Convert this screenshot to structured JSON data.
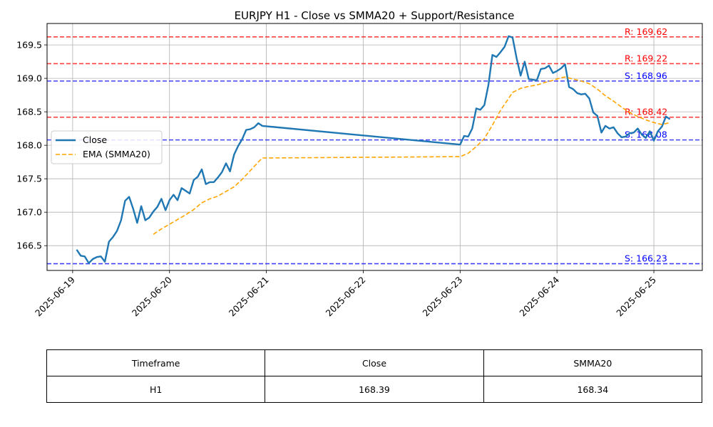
{
  "chart_data": {
    "type": "line",
    "title": "EURJPY H1 - Close vs SMMA20 + Support/Resistance",
    "xlabel": "",
    "ylabel": "",
    "x_range": [
      "2025-06-18T17:40",
      "2025-06-25T12:00"
    ],
    "ylim": [
      166.13,
      169.82
    ],
    "x_ticks": [
      "2025-06-19",
      "2025-06-20",
      "2025-06-21",
      "2025-06-22",
      "2025-06-23",
      "2025-06-24",
      "2025-06-25"
    ],
    "y_ticks": [
      166.5,
      167.0,
      167.5,
      168.0,
      168.5,
      169.0,
      169.5
    ],
    "grid": true,
    "legend_position": "center-left",
    "series": [
      {
        "name": "Close",
        "color": "#1f77b4",
        "style": "solid",
        "points": [
          [
            "2025-06-19T01:00",
            166.44
          ],
          [
            "2025-06-19T02:00",
            166.35
          ],
          [
            "2025-06-19T03:00",
            166.34
          ],
          [
            "2025-06-19T04:00",
            166.24
          ],
          [
            "2025-06-19T05:00",
            166.3
          ],
          [
            "2025-06-19T06:00",
            166.33
          ],
          [
            "2025-06-19T07:00",
            166.34
          ],
          [
            "2025-06-19T08:00",
            166.26
          ],
          [
            "2025-06-19T09:00",
            166.56
          ],
          [
            "2025-06-19T10:00",
            166.63
          ],
          [
            "2025-06-19T11:00",
            166.72
          ],
          [
            "2025-06-19T12:00",
            166.88
          ],
          [
            "2025-06-19T13:00",
            167.17
          ],
          [
            "2025-06-19T14:00",
            167.23
          ],
          [
            "2025-06-19T15:00",
            167.05
          ],
          [
            "2025-06-19T16:00",
            166.84
          ],
          [
            "2025-06-19T17:00",
            167.09
          ],
          [
            "2025-06-19T18:00",
            166.88
          ],
          [
            "2025-06-19T19:00",
            166.92
          ],
          [
            "2025-06-19T20:00",
            167.01
          ],
          [
            "2025-06-19T21:00",
            167.08
          ],
          [
            "2025-06-19T22:00",
            167.2
          ],
          [
            "2025-06-19T23:00",
            167.03
          ],
          [
            "2025-06-20T00:00",
            167.18
          ],
          [
            "2025-06-20T01:00",
            167.26
          ],
          [
            "2025-06-20T02:00",
            167.18
          ],
          [
            "2025-06-20T03:00",
            167.36
          ],
          [
            "2025-06-20T04:00",
            167.32
          ],
          [
            "2025-06-20T05:00",
            167.28
          ],
          [
            "2025-06-20T06:00",
            167.48
          ],
          [
            "2025-06-20T07:00",
            167.53
          ],
          [
            "2025-06-20T08:00",
            167.64
          ],
          [
            "2025-06-20T09:00",
            167.42
          ],
          [
            "2025-06-20T10:00",
            167.45
          ],
          [
            "2025-06-20T11:00",
            167.45
          ],
          [
            "2025-06-20T12:00",
            167.52
          ],
          [
            "2025-06-20T13:00",
            167.6
          ],
          [
            "2025-06-20T14:00",
            167.73
          ],
          [
            "2025-06-20T15:00",
            167.61
          ],
          [
            "2025-06-20T16:00",
            167.86
          ],
          [
            "2025-06-20T17:00",
            167.99
          ],
          [
            "2025-06-20T18:00",
            168.09
          ],
          [
            "2025-06-20T19:00",
            168.23
          ],
          [
            "2025-06-20T20:00",
            168.24
          ],
          [
            "2025-06-20T21:00",
            168.27
          ],
          [
            "2025-06-20T22:00",
            168.33
          ],
          [
            "2025-06-20T23:00",
            168.29
          ],
          [
            "2025-06-23T00:00",
            168.01
          ],
          [
            "2025-06-23T01:00",
            168.14
          ],
          [
            "2025-06-23T02:00",
            168.13
          ],
          [
            "2025-06-23T03:00",
            168.25
          ],
          [
            "2025-06-23T04:00",
            168.55
          ],
          [
            "2025-06-23T05:00",
            168.53
          ],
          [
            "2025-06-23T06:00",
            168.6
          ],
          [
            "2025-06-23T07:00",
            168.9
          ],
          [
            "2025-06-23T08:00",
            169.35
          ],
          [
            "2025-06-23T09:00",
            169.32
          ],
          [
            "2025-06-23T10:00",
            169.39
          ],
          [
            "2025-06-23T11:00",
            169.47
          ],
          [
            "2025-06-23T12:00",
            169.63
          ],
          [
            "2025-06-23T13:00",
            169.61
          ],
          [
            "2025-06-23T14:00",
            169.3
          ],
          [
            "2025-06-23T15:00",
            169.04
          ],
          [
            "2025-06-23T16:00",
            169.25
          ],
          [
            "2025-06-23T17:00",
            168.99
          ],
          [
            "2025-06-23T18:00",
            168.98
          ],
          [
            "2025-06-23T19:00",
            168.97
          ],
          [
            "2025-06-23T20:00",
            169.14
          ],
          [
            "2025-06-23T21:00",
            169.15
          ],
          [
            "2025-06-23T22:00",
            169.19
          ],
          [
            "2025-06-23T23:00",
            169.08
          ],
          [
            "2025-06-24T00:00",
            169.11
          ],
          [
            "2025-06-24T01:00",
            169.15
          ],
          [
            "2025-06-24T02:00",
            169.21
          ],
          [
            "2025-06-24T03:00",
            168.87
          ],
          [
            "2025-06-24T04:00",
            168.84
          ],
          [
            "2025-06-24T05:00",
            168.78
          ],
          [
            "2025-06-24T06:00",
            168.76
          ],
          [
            "2025-06-24T07:00",
            168.77
          ],
          [
            "2025-06-24T08:00",
            168.7
          ],
          [
            "2025-06-24T09:00",
            168.49
          ],
          [
            "2025-06-24T10:00",
            168.44
          ],
          [
            "2025-06-24T11:00",
            168.19
          ],
          [
            "2025-06-24T12:00",
            168.29
          ],
          [
            "2025-06-24T13:00",
            168.25
          ],
          [
            "2025-06-24T14:00",
            168.27
          ],
          [
            "2025-06-24T15:00",
            168.18
          ],
          [
            "2025-06-24T16:00",
            168.12
          ],
          [
            "2025-06-24T17:00",
            168.13
          ],
          [
            "2025-06-24T18:00",
            168.18
          ],
          [
            "2025-06-24T19:00",
            168.19
          ],
          [
            "2025-06-24T20:00",
            168.25
          ],
          [
            "2025-06-24T21:00",
            168.16
          ],
          [
            "2025-06-24T22:00",
            168.11
          ],
          [
            "2025-06-24T23:00",
            168.21
          ],
          [
            "2025-06-25T00:00",
            168.07
          ],
          [
            "2025-06-25T01:00",
            168.21
          ],
          [
            "2025-06-25T02:00",
            168.28
          ],
          [
            "2025-06-25T03:00",
            168.43
          ],
          [
            "2025-06-25T04:00",
            168.39
          ]
        ]
      },
      {
        "name": "EMA (SMMA20)",
        "color": "#ffa500",
        "style": "dashed",
        "points": [
          [
            "2025-06-19T20:00",
            166.67
          ],
          [
            "2025-06-19T22:00",
            166.75
          ],
          [
            "2025-06-20T00:00",
            166.82
          ],
          [
            "2025-06-20T02:00",
            166.89
          ],
          [
            "2025-06-20T04:00",
            166.96
          ],
          [
            "2025-06-20T06:00",
            167.04
          ],
          [
            "2025-06-20T08:00",
            167.14
          ],
          [
            "2025-06-20T10:00",
            167.2
          ],
          [
            "2025-06-20T12:00",
            167.24
          ],
          [
            "2025-06-20T14:00",
            167.31
          ],
          [
            "2025-06-20T16:00",
            167.38
          ],
          [
            "2025-06-20T18:00",
            167.49
          ],
          [
            "2025-06-20T20:00",
            167.62
          ],
          [
            "2025-06-20T22:00",
            167.75
          ],
          [
            "2025-06-20T23:00",
            167.81
          ],
          [
            "2025-06-23T00:00",
            167.83
          ],
          [
            "2025-06-23T02:00",
            167.88
          ],
          [
            "2025-06-23T04:00",
            167.98
          ],
          [
            "2025-06-23T06:00",
            168.1
          ],
          [
            "2025-06-23T08:00",
            168.3
          ],
          [
            "2025-06-23T10:00",
            168.52
          ],
          [
            "2025-06-23T12:00",
            168.7
          ],
          [
            "2025-06-23T13:00",
            168.79
          ],
          [
            "2025-06-23T15:00",
            168.85
          ],
          [
            "2025-06-23T17:00",
            168.88
          ],
          [
            "2025-06-23T19:00",
            168.9
          ],
          [
            "2025-06-23T21:00",
            168.94
          ],
          [
            "2025-06-23T23:00",
            168.97
          ],
          [
            "2025-06-24T01:00",
            169.01
          ],
          [
            "2025-06-24T02:00",
            169.02
          ],
          [
            "2025-06-24T04:00",
            168.99
          ],
          [
            "2025-06-24T06:00",
            168.96
          ],
          [
            "2025-06-24T08:00",
            168.92
          ],
          [
            "2025-06-24T10:00",
            168.84
          ],
          [
            "2025-06-24T12:00",
            168.74
          ],
          [
            "2025-06-24T14:00",
            168.66
          ],
          [
            "2025-06-24T16:00",
            168.57
          ],
          [
            "2025-06-24T18:00",
            168.49
          ],
          [
            "2025-06-24T20:00",
            168.43
          ],
          [
            "2025-06-24T22:00",
            168.38
          ],
          [
            "2025-06-25T00:00",
            168.34
          ],
          [
            "2025-06-25T02:00",
            168.31
          ],
          [
            "2025-06-25T04:00",
            168.34
          ]
        ]
      }
    ],
    "horizontal_lines": [
      {
        "kind": "resistance",
        "value": 169.62,
        "label": "R: 169.62",
        "color": "#ff0000"
      },
      {
        "kind": "resistance",
        "value": 169.22,
        "label": "R: 169.22",
        "color": "#ff0000"
      },
      {
        "kind": "resistance",
        "value": 168.42,
        "label": "R: 168.42",
        "color": "#ff0000"
      },
      {
        "kind": "support",
        "value": 168.96,
        "label": "S: 168.96",
        "color": "#0000ff"
      },
      {
        "kind": "support",
        "value": 168.08,
        "label": "S: 168.08",
        "color": "#0000ff"
      },
      {
        "kind": "support",
        "value": 166.23,
        "label": "S: 166.23",
        "color": "#0000ff"
      }
    ]
  },
  "table": {
    "headers": [
      "Timeframe",
      "Close",
      "SMMA20"
    ],
    "row": [
      "H1",
      "168.39",
      "168.34"
    ]
  }
}
